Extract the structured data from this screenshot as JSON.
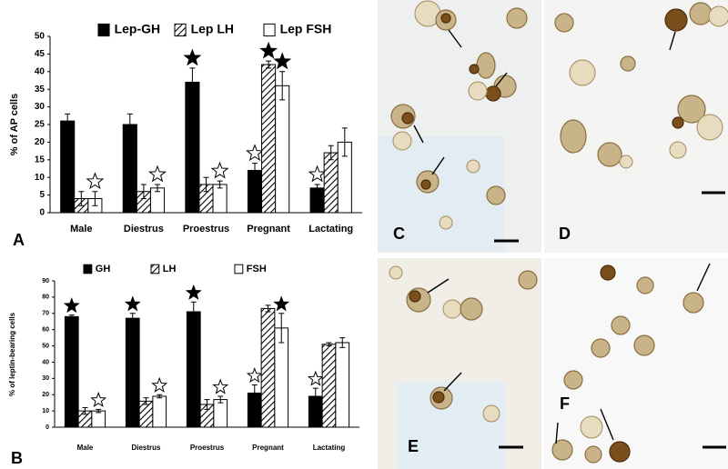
{
  "chart_data": [
    {
      "type": "bar",
      "panel": "A",
      "y_label": "% of AP cells",
      "categories": [
        "Male",
        "Diestrus",
        "Proestrus",
        "Pregnant",
        "Lactating"
      ],
      "series": [
        {
          "name": "Lep-GH",
          "color": "#000000",
          "values": [
            26,
            25,
            37,
            12,
            7
          ],
          "errors": [
            2,
            3,
            4,
            2,
            1
          ],
          "stars": [
            null,
            null,
            "filled",
            "open",
            "open"
          ]
        },
        {
          "name": "Lep LH",
          "color": "#000000",
          "pattern": "hatch",
          "values": [
            4,
            6,
            8,
            42,
            17
          ],
          "errors": [
            2,
            2,
            2,
            1,
            2
          ],
          "stars": [
            null,
            null,
            null,
            "filled",
            null
          ]
        },
        {
          "name": "Lep FSH",
          "color": "#ffffff",
          "values": [
            4,
            7,
            8,
            36,
            20
          ],
          "errors": [
            2,
            1,
            1,
            4,
            4
          ],
          "stars": [
            "open",
            "open",
            "open",
            "filled",
            null
          ]
        }
      ],
      "ylim": [
        0,
        50
      ],
      "yticks": [
        0,
        5,
        10,
        15,
        20,
        25,
        30,
        35,
        40,
        45,
        50
      ]
    },
    {
      "type": "bar",
      "panel": "B",
      "y_label": "% of leptin-bearing cells",
      "categories": [
        "Male",
        "Diestrus",
        "Proestrus",
        "Pregnant",
        "Lactating"
      ],
      "series": [
        {
          "name": "GH",
          "color": "#000000",
          "values": [
            68,
            67,
            71,
            21,
            19
          ],
          "errors": [
            1,
            3,
            6,
            5,
            5
          ],
          "stars": [
            "filled",
            "filled",
            "filled",
            "open",
            "open"
          ]
        },
        {
          "name": "LH",
          "color": "#000000",
          "pattern": "hatch",
          "values": [
            10,
            16,
            14,
            73,
            51
          ],
          "errors": [
            2,
            2,
            3,
            2,
            1
          ],
          "stars": [
            null,
            null,
            null,
            null,
            null
          ]
        },
        {
          "name": "FSH",
          "color": "#ffffff",
          "values": [
            10,
            19,
            17,
            61,
            52
          ],
          "errors": [
            1,
            1,
            2,
            9,
            3
          ],
          "stars": [
            "open",
            "open",
            "open",
            "filled",
            null
          ]
        }
      ],
      "ylim": [
        0,
        90
      ],
      "yticks": [
        0,
        10,
        20,
        30,
        40,
        50,
        60,
        70,
        80,
        90
      ]
    }
  ],
  "micrographs": {
    "panels": [
      "C",
      "D",
      "E",
      "F"
    ]
  }
}
